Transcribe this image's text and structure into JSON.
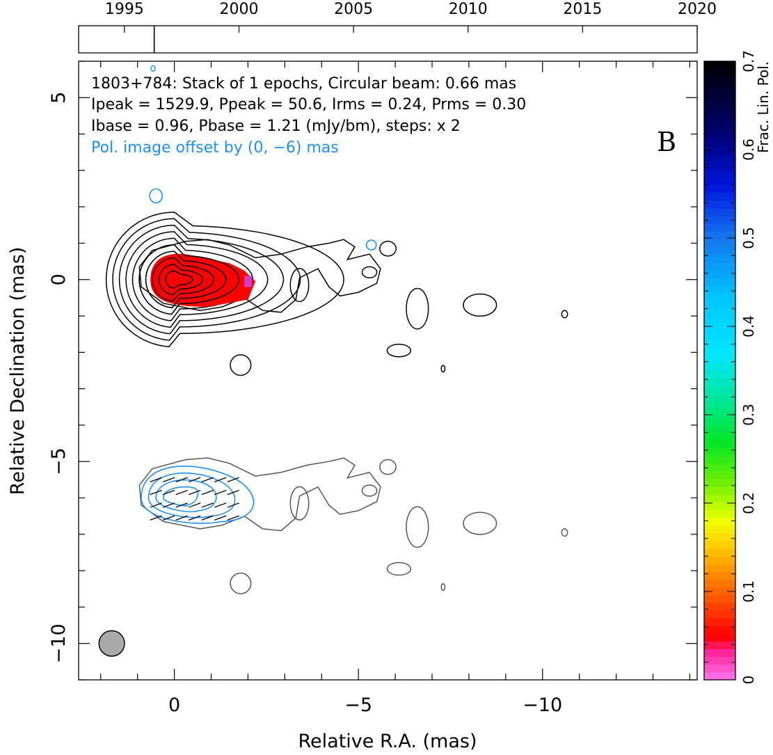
{
  "chart_data": {
    "type": "contour",
    "panel_label": "B",
    "xlabel": "Relative R.A. (mas)",
    "ylabel": "Relative Declination (mas)",
    "xlim": [
      2.6,
      -14.2
    ],
    "ylim": [
      -11,
      6
    ],
    "xticks": [
      "0",
      "−5",
      "−10"
    ],
    "yticks": [
      "−10",
      "−5",
      "0",
      "5"
    ],
    "timeline": {
      "range": [
        1993,
        2020
      ],
      "tick_labels": [
        "1995",
        "2000",
        "2005",
        "2010",
        "2015",
        "2020"
      ],
      "epochs": [
        1996.3
      ]
    },
    "colorbar": {
      "label": "Frac. Lin. Pol.",
      "range": [
        0,
        0.7
      ],
      "tick_labels": [
        "0",
        "0.1",
        "0.2",
        "0.3",
        "0.4",
        "0.5",
        "0.6",
        "0.7"
      ]
    },
    "annotations": {
      "line1": "1803+784: Stack of 1 epochs, Circular beam: 0.66 mas",
      "line2": "Ipeak = 1529.9, Ppeak = 50.6, Irms = 0.24, Prms = 0.30",
      "line3": "Ibase = 0.96, Pbase = 1.21 (mJy/bm), steps: x 2",
      "line4": "Pol. image offset by (0, −6) mas"
    },
    "source": "1803+784",
    "epochs_stacked": 1,
    "beam_mas": 0.66,
    "Ipeak": 1529.9,
    "Ppeak": 50.6,
    "Irms": 0.24,
    "Prms": 0.3,
    "Ibase": 0.96,
    "Pbase": 1.21,
    "units": "mJy/bm",
    "contour_step": 2,
    "pol_offset_mas": [
      0,
      -6
    ],
    "core": [
      0,
      0
    ],
    "beam_position": [
      1.7,
      -10
    ],
    "intensity_levels": 10,
    "pol_levels": 4,
    "frac_pol_color": "#ff0000",
    "colors": {
      "intensity": "#000000",
      "polarization": "#1e90ff",
      "offset_contours": "#555555",
      "beam": "#aaaaaa"
    }
  }
}
